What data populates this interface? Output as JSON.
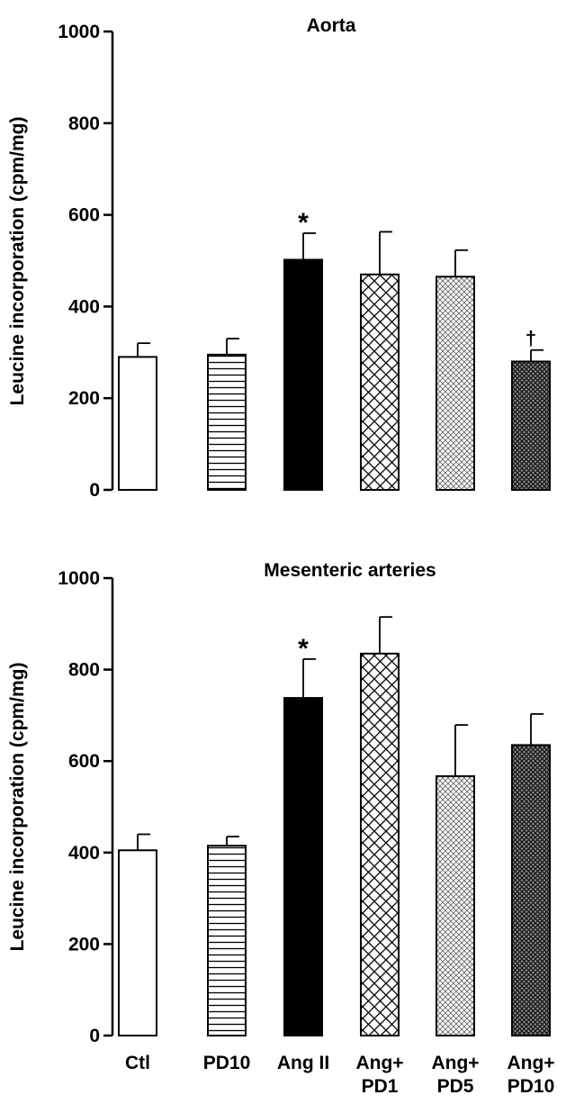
{
  "chart_data": [
    {
      "type": "bar",
      "title": "Aorta",
      "ylabel": "Leucine incorporation (cpm/mg)",
      "xlabel": "",
      "ylim": [
        0,
        1000
      ],
      "yticks": [
        0,
        200,
        400,
        600,
        800,
        1000
      ],
      "categories": [
        "Ctl",
        "PD10",
        "Ang II",
        "Ang+ PD1",
        "Ang+ PD5",
        "Ang+ PD10"
      ],
      "values": [
        290,
        295,
        502,
        470,
        465,
        280
      ],
      "errors": [
        30,
        35,
        58,
        93,
        58,
        25
      ],
      "annotations": [
        "",
        "",
        "*",
        "",
        "",
        "†"
      ],
      "fills": [
        "white",
        "horizontal-lines",
        "black",
        "coarse-crosshatch",
        "fine-crosshatch",
        "dense-crosshatch"
      ],
      "grid": false
    },
    {
      "type": "bar",
      "title": "Mesenteric arteries",
      "ylabel": "Leucine incorporation (cpm/mg)",
      "xlabel": "",
      "ylim": [
        0,
        1000
      ],
      "yticks": [
        0,
        200,
        400,
        600,
        800,
        1000
      ],
      "categories": [
        "Ctl",
        "PD10",
        "Ang II",
        "Ang+ PD1",
        "Ang+ PD5",
        "Ang+ PD10"
      ],
      "values": [
        405,
        415,
        738,
        835,
        567,
        635
      ],
      "errors": [
        35,
        20,
        85,
        80,
        112,
        68
      ],
      "annotations": [
        "",
        "",
        "*",
        "",
        "",
        ""
      ],
      "fills": [
        "white",
        "horizontal-lines",
        "black",
        "coarse-crosshatch",
        "fine-crosshatch",
        "dense-crosshatch"
      ],
      "grid": false
    }
  ],
  "x_labels": [
    {
      "line1": "Ctl",
      "line2": ""
    },
    {
      "line1": "PD10",
      "line2": ""
    },
    {
      "line1": "Ang II",
      "line2": ""
    },
    {
      "line1": "Ang+",
      "line2": "PD1"
    },
    {
      "line1": "Ang+",
      "line2": "PD5"
    },
    {
      "line1": "Ang+",
      "line2": "PD10"
    }
  ]
}
